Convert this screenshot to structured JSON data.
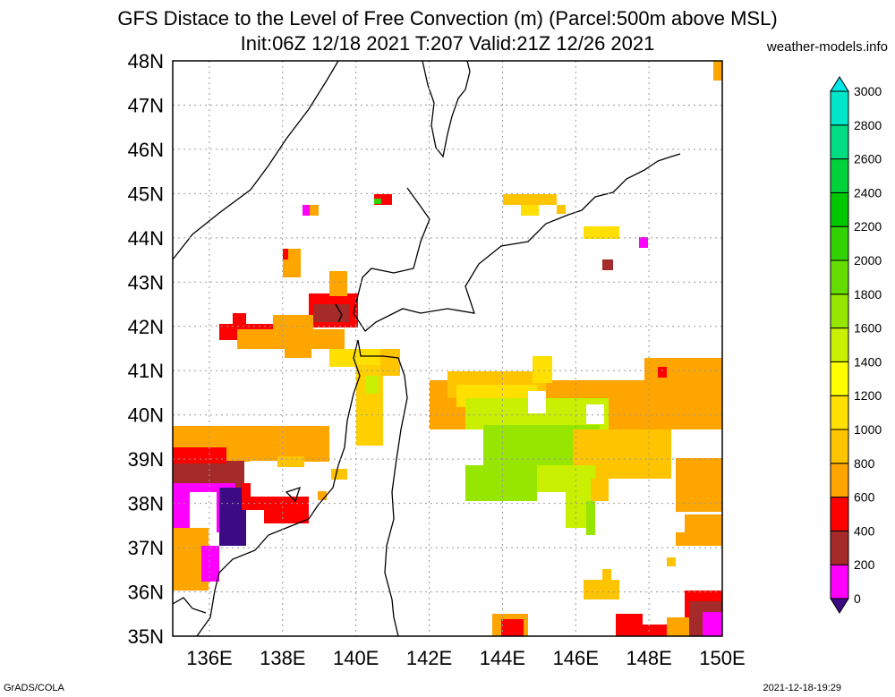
{
  "title": {
    "line1": "GFS Distace to the Level of Free Convection (m) (Parcel:500m above MSL)",
    "line2": "Init:06Z 12/18 2021 T:207 Valid:21Z 12/26 2021"
  },
  "brand": "weather-models.info",
  "footer": {
    "left": "GrADS/COLA",
    "right": "2021-12-18-19:29"
  },
  "map": {
    "lon_labels": [
      "136E",
      "138E",
      "140E",
      "142E",
      "144E",
      "146E",
      "148E",
      "150E"
    ],
    "lat_labels": [
      "35N",
      "36N",
      "37N",
      "38N",
      "39N",
      "40N",
      "41N",
      "42N",
      "43N",
      "44N",
      "45N",
      "46N",
      "47N",
      "48N"
    ]
  },
  "colorbar": {
    "levels": [
      "0",
      "200",
      "400",
      "600",
      "800",
      "1000",
      "1200",
      "1400",
      "1600",
      "1800",
      "2000",
      "2200",
      "2400",
      "2600",
      "2800",
      "3000"
    ],
    "colors": [
      "#3c0a82",
      "#ff00ff",
      "#a52a2a",
      "#ff0000",
      "#ffa500",
      "#ffc400",
      "#ffe000",
      "#ffff00",
      "#c8f000",
      "#96e600",
      "#64dc00",
      "#32d200",
      "#00c800",
      "#00d23c",
      "#00dc82",
      "#00e6c8",
      "#00e6e6"
    ]
  }
}
